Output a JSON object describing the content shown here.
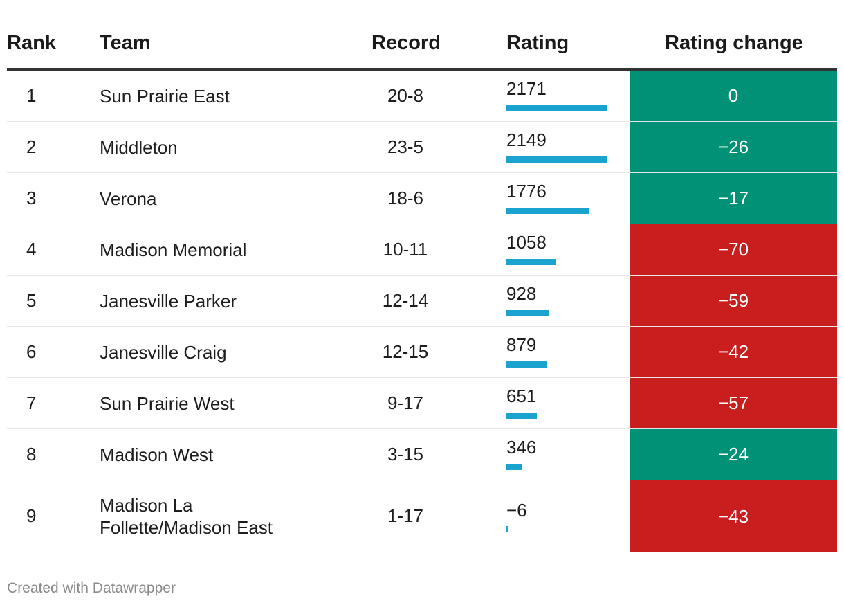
{
  "chart_data": {
    "type": "table",
    "columns": [
      "Rank",
      "Team",
      "Record",
      "Rating",
      "Rating change"
    ],
    "rating_scale_max": 2171,
    "colors": {
      "positive_bg": "#009176",
      "negative_bg": "#c81e1e",
      "bar": "#1ba3d0"
    },
    "rows": [
      {
        "rank": "1",
        "team": "Sun Prairie East",
        "record": "20-8",
        "rating": "2171",
        "rating_value": 2171,
        "change": "0",
        "change_color": "#009176"
      },
      {
        "rank": "2",
        "team": "Middleton",
        "record": "23-5",
        "rating": "2149",
        "rating_value": 2149,
        "change": "−26",
        "change_color": "#009176"
      },
      {
        "rank": "3",
        "team": "Verona",
        "record": "18-6",
        "rating": "1776",
        "rating_value": 1776,
        "change": "−17",
        "change_color": "#009176"
      },
      {
        "rank": "4",
        "team": "Madison Memorial",
        "record": "10-11",
        "rating": "1058",
        "rating_value": 1058,
        "change": "−70",
        "change_color": "#c81e1e"
      },
      {
        "rank": "5",
        "team": "Janesville Parker",
        "record": "12-14",
        "rating": "928",
        "rating_value": 928,
        "change": "−59",
        "change_color": "#c81e1e"
      },
      {
        "rank": "6",
        "team": "Janesville Craig",
        "record": "12-15",
        "rating": "879",
        "rating_value": 879,
        "change": "−42",
        "change_color": "#c81e1e"
      },
      {
        "rank": "7",
        "team": "Sun Prairie West",
        "record": "9-17",
        "rating": "651",
        "rating_value": 651,
        "change": "−57",
        "change_color": "#c81e1e"
      },
      {
        "rank": "8",
        "team": "Madison West",
        "record": "3-15",
        "rating": "346",
        "rating_value": 346,
        "change": "−24",
        "change_color": "#009176"
      },
      {
        "rank": "9",
        "team": "Madison La Follette/Madison East",
        "record": "1-17",
        "rating": "−6",
        "rating_value": -6,
        "change": "−43",
        "change_color": "#c81e1e"
      }
    ]
  },
  "footer": "Created with Datawrapper"
}
